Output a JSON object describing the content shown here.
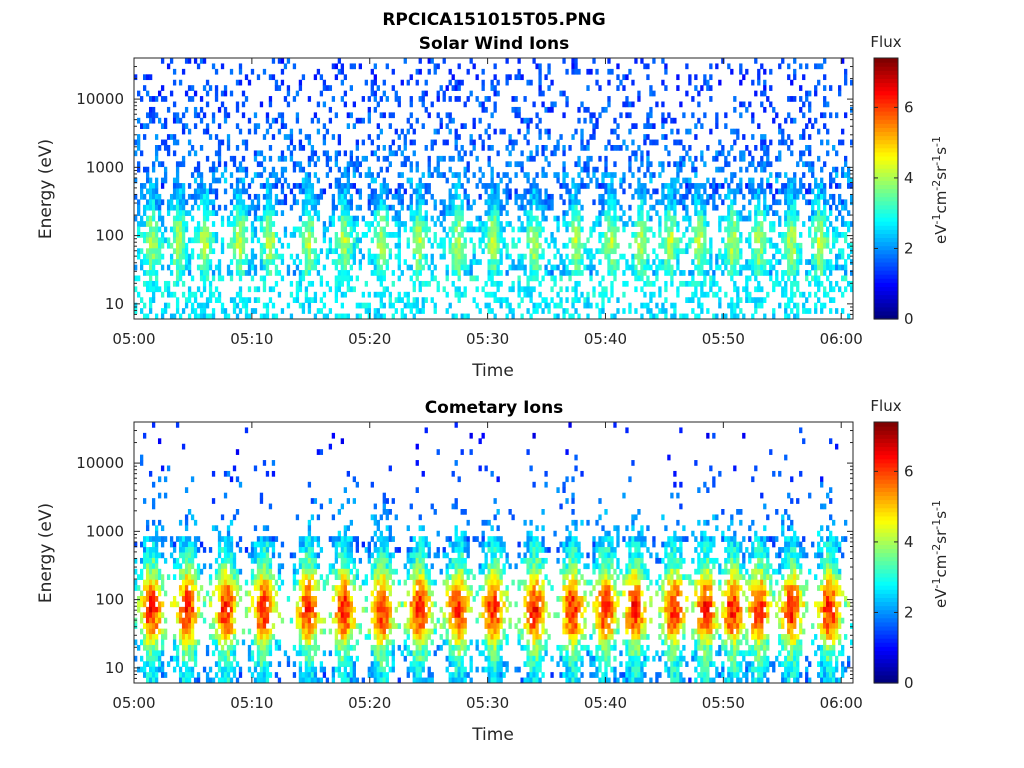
{
  "figure_title": "RPCICA151015T05.PNG",
  "chart_data": [
    {
      "type": "heatmap",
      "title": "Solar Wind Ions",
      "xlabel": "Time",
      "ylabel": "Energy (eV)",
      "x_ticks": [
        "05:00",
        "05:10",
        "05:20",
        "05:30",
        "05:40",
        "05:50",
        "06:00"
      ],
      "x_range_minutes": [
        0,
        61
      ],
      "y_scale": "log",
      "y_ticks": [
        10,
        100,
        1000,
        10000
      ],
      "y_tick_labels": [
        "10",
        "100",
        "1000",
        "10000"
      ],
      "y_range": [
        6,
        40000
      ],
      "colorbar": {
        "title": "Flux",
        "unit": "eV",
        "unit_exp": "-1",
        "unit_cm": "cm",
        "unit_cm_exp": "-2",
        "unit_sr": "sr",
        "unit_sr_exp": "-1",
        "unit_s": "s",
        "unit_s_exp": "-1",
        "range": [
          0,
          7.4
        ],
        "ticks": [
          "0",
          "2",
          "4",
          "6"
        ],
        "colormap": "jet"
      },
      "profile": {
        "description_values": "per-band typical flux by energy",
        "energy_bands": [
          8,
          20,
          40,
          80,
          150,
          300,
          1000,
          4000,
          20000
        ],
        "flux": [
          2.6,
          2.8,
          3.4,
          4.0,
          3.4,
          2.5,
          1.6,
          1.4,
          1.2
        ]
      },
      "burst_times_minutes": [
        1.5,
        3.8,
        6.0,
        9.0,
        11.5,
        14.8,
        17.8,
        21.0,
        24.2,
        27.5,
        30.5,
        34.0,
        37.5,
        40.5,
        43.0,
        45.5,
        48.0,
        50.8,
        53.0,
        55.8,
        58.2
      ]
    },
    {
      "type": "heatmap",
      "title": "Cometary Ions",
      "xlabel": "Time",
      "ylabel": "Energy (eV)",
      "x_ticks": [
        "05:00",
        "05:10",
        "05:20",
        "05:30",
        "05:40",
        "05:50",
        "06:00"
      ],
      "x_range_minutes": [
        0,
        61
      ],
      "y_scale": "log",
      "y_ticks": [
        10,
        100,
        1000,
        10000
      ],
      "y_tick_labels": [
        "10",
        "100",
        "1000",
        "10000"
      ],
      "y_range": [
        6,
        40000
      ],
      "colorbar": {
        "title": "Flux",
        "unit": "eV",
        "unit_exp": "-1",
        "unit_cm": "cm",
        "unit_cm_exp": "-2",
        "unit_sr": "sr",
        "unit_sr_exp": "-1",
        "unit_s": "s",
        "unit_s_exp": "-1",
        "range": [
          0,
          7.4
        ],
        "ticks": [
          "0",
          "2",
          "4",
          "6"
        ],
        "colormap": "jet"
      },
      "profile": {
        "description_values": "per-band typical flux by energy",
        "energy_bands": [
          8,
          20,
          40,
          80,
          150,
          300,
          1000,
          4000,
          20000
        ],
        "flux": [
          2.8,
          3.8,
          5.8,
          6.4,
          5.4,
          3.6,
          2.2,
          1.6,
          1.2
        ]
      },
      "burst_times_minutes": [
        1.5,
        4.5,
        7.8,
        11.0,
        14.8,
        17.8,
        21.0,
        24.2,
        27.5,
        30.5,
        34.0,
        37.2,
        40.0,
        42.5,
        45.8,
        48.5,
        50.8,
        53.0,
        55.8,
        59.0
      ]
    }
  ]
}
